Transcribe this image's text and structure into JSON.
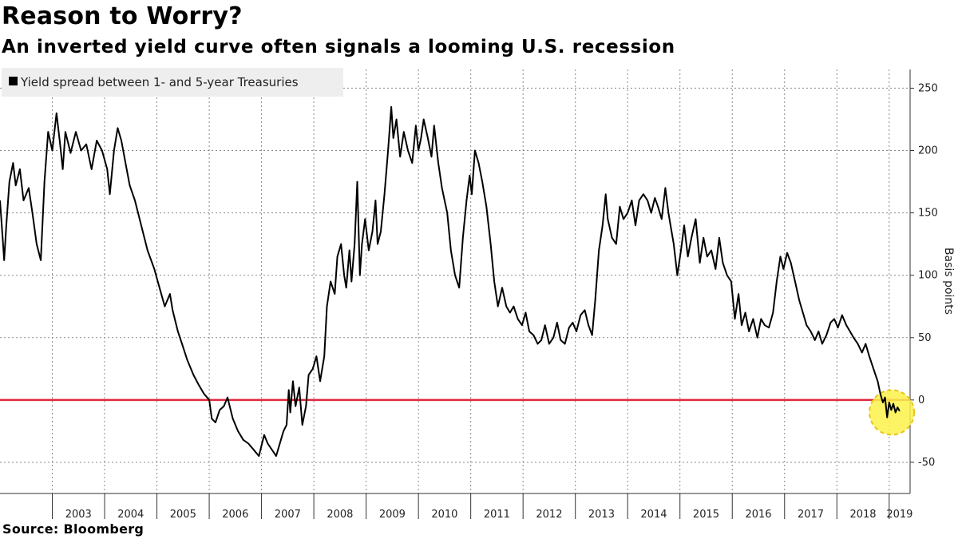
{
  "header": {
    "title": "Reason to Worry?",
    "subtitle": "An inverted yield curve often signals a looming U.S. recession"
  },
  "footer": {
    "source": "Source:  Bloomberg"
  },
  "colors": {
    "series": "#000000",
    "zero_line": "#e0283c",
    "highlight_fill": "#fbf14a",
    "highlight_stroke": "#e8c41a",
    "legend_bg": "#eeeeee",
    "grid": "#888888"
  },
  "chart_data": {
    "type": "line",
    "title": "Reason to Worry?",
    "subtitle": "An inverted yield curve often signals a looming U.S. recession",
    "legend": "Yield spread between 1- and 5-year Treasuries",
    "legend_position": "top-left",
    "ylabel": "Basis points",
    "xlabel": "",
    "ylim": [
      -75,
      265
    ],
    "xlim": [
      2002.0,
      2019.4
    ],
    "y_ticks": [
      250,
      200,
      150,
      100,
      50,
      0,
      -50
    ],
    "x_tick_labels": [
      "2003",
      "2004",
      "2005",
      "2006",
      "2007",
      "2008",
      "2009",
      "2010",
      "2011",
      "2012",
      "2013",
      "2014",
      "2015",
      "2016",
      "2017",
      "2018",
      "2019"
    ],
    "grid": true,
    "reference_line": {
      "y": 0,
      "color": "red"
    },
    "annotation": {
      "type": "highlight-circle",
      "x": 2019.05,
      "y": -10
    },
    "series": [
      {
        "name": "Yield spread between 1- and 5-year Treasuries",
        "points": [
          [
            2002.0,
            160
          ],
          [
            2002.05,
            130
          ],
          [
            2002.08,
            112
          ],
          [
            2002.12,
            140
          ],
          [
            2002.18,
            175
          ],
          [
            2002.25,
            190
          ],
          [
            2002.3,
            172
          ],
          [
            2002.38,
            185
          ],
          [
            2002.45,
            160
          ],
          [
            2002.55,
            170
          ],
          [
            2002.62,
            150
          ],
          [
            2002.7,
            125
          ],
          [
            2002.78,
            112
          ],
          [
            2002.85,
            175
          ],
          [
            2002.92,
            215
          ],
          [
            2003.0,
            200
          ],
          [
            2003.08,
            230
          ],
          [
            2003.15,
            205
          ],
          [
            2003.2,
            185
          ],
          [
            2003.25,
            215
          ],
          [
            2003.35,
            198
          ],
          [
            2003.45,
            215
          ],
          [
            2003.55,
            200
          ],
          [
            2003.65,
            205
          ],
          [
            2003.75,
            185
          ],
          [
            2003.85,
            208
          ],
          [
            2003.95,
            200
          ],
          [
            2004.05,
            185
          ],
          [
            2004.1,
            165
          ],
          [
            2004.18,
            200
          ],
          [
            2004.25,
            218
          ],
          [
            2004.32,
            208
          ],
          [
            2004.4,
            190
          ],
          [
            2004.48,
            172
          ],
          [
            2004.58,
            160
          ],
          [
            2004.7,
            140
          ],
          [
            2004.82,
            120
          ],
          [
            2004.95,
            105
          ],
          [
            2005.05,
            90
          ],
          [
            2005.15,
            75
          ],
          [
            2005.25,
            85
          ],
          [
            2005.3,
            72
          ],
          [
            2005.4,
            55
          ],
          [
            2005.48,
            45
          ],
          [
            2005.58,
            32
          ],
          [
            2005.7,
            20
          ],
          [
            2005.8,
            12
          ],
          [
            2005.9,
            5
          ],
          [
            2006.0,
            0
          ],
          [
            2006.05,
            -15
          ],
          [
            2006.12,
            -18
          ],
          [
            2006.2,
            -8
          ],
          [
            2006.28,
            -5
          ],
          [
            2006.35,
            2
          ],
          [
            2006.45,
            -15
          ],
          [
            2006.55,
            -25
          ],
          [
            2006.65,
            -32
          ],
          [
            2006.75,
            -35
          ],
          [
            2006.85,
            -40
          ],
          [
            2006.95,
            -45
          ],
          [
            2007.05,
            -28
          ],
          [
            2007.12,
            -35
          ],
          [
            2007.2,
            -40
          ],
          [
            2007.28,
            -45
          ],
          [
            2007.35,
            -35
          ],
          [
            2007.42,
            -25
          ],
          [
            2007.48,
            -20
          ],
          [
            2007.52,
            8
          ],
          [
            2007.55,
            -10
          ],
          [
            2007.6,
            15
          ],
          [
            2007.65,
            -5
          ],
          [
            2007.72,
            10
          ],
          [
            2007.78,
            -20
          ],
          [
            2007.85,
            -5
          ],
          [
            2007.9,
            20
          ],
          [
            2007.98,
            25
          ],
          [
            2008.05,
            35
          ],
          [
            2008.12,
            15
          ],
          [
            2008.2,
            35
          ],
          [
            2008.25,
            75
          ],
          [
            2008.32,
            95
          ],
          [
            2008.4,
            85
          ],
          [
            2008.45,
            115
          ],
          [
            2008.52,
            125
          ],
          [
            2008.58,
            100
          ],
          [
            2008.62,
            90
          ],
          [
            2008.68,
            120
          ],
          [
            2008.72,
            95
          ],
          [
            2008.78,
            125
          ],
          [
            2008.83,
            175
          ],
          [
            2008.88,
            100
          ],
          [
            2008.92,
            125
          ],
          [
            2008.98,
            145
          ],
          [
            2009.05,
            120
          ],
          [
            2009.12,
            135
          ],
          [
            2009.18,
            160
          ],
          [
            2009.22,
            125
          ],
          [
            2009.28,
            135
          ],
          [
            2009.35,
            165
          ],
          [
            2009.42,
            200
          ],
          [
            2009.48,
            235
          ],
          [
            2009.52,
            210
          ],
          [
            2009.58,
            225
          ],
          [
            2009.65,
            195
          ],
          [
            2009.72,
            215
          ],
          [
            2009.8,
            200
          ],
          [
            2009.88,
            190
          ],
          [
            2009.95,
            220
          ],
          [
            2010.0,
            200
          ],
          [
            2010.05,
            210
          ],
          [
            2010.1,
            225
          ],
          [
            2010.18,
            210
          ],
          [
            2010.25,
            195
          ],
          [
            2010.3,
            220
          ],
          [
            2010.38,
            190
          ],
          [
            2010.45,
            170
          ],
          [
            2010.55,
            150
          ],
          [
            2010.62,
            120
          ],
          [
            2010.7,
            100
          ],
          [
            2010.78,
            90
          ],
          [
            2010.85,
            130
          ],
          [
            2010.92,
            160
          ],
          [
            2010.98,
            180
          ],
          [
            2011.02,
            165
          ],
          [
            2011.08,
            200
          ],
          [
            2011.15,
            190
          ],
          [
            2011.22,
            175
          ],
          [
            2011.3,
            155
          ],
          [
            2011.38,
            125
          ],
          [
            2011.45,
            95
          ],
          [
            2011.52,
            75
          ],
          [
            2011.6,
            90
          ],
          [
            2011.68,
            75
          ],
          [
            2011.75,
            70
          ],
          [
            2011.82,
            75
          ],
          [
            2011.9,
            65
          ],
          [
            2011.98,
            60
          ],
          [
            2012.05,
            70
          ],
          [
            2012.12,
            55
          ],
          [
            2012.2,
            52
          ],
          [
            2012.28,
            45
          ],
          [
            2012.35,
            48
          ],
          [
            2012.42,
            60
          ],
          [
            2012.5,
            45
          ],
          [
            2012.58,
            50
          ],
          [
            2012.65,
            62
          ],
          [
            2012.72,
            48
          ],
          [
            2012.8,
            45
          ],
          [
            2012.88,
            58
          ],
          [
            2012.95,
            62
          ],
          [
            2013.02,
            55
          ],
          [
            2013.1,
            68
          ],
          [
            2013.18,
            72
          ],
          [
            2013.25,
            60
          ],
          [
            2013.32,
            52
          ],
          [
            2013.38,
            80
          ],
          [
            2013.45,
            120
          ],
          [
            2013.52,
            140
          ],
          [
            2013.58,
            165
          ],
          [
            2013.62,
            145
          ],
          [
            2013.7,
            130
          ],
          [
            2013.78,
            125
          ],
          [
            2013.85,
            155
          ],
          [
            2013.92,
            145
          ],
          [
            2014.0,
            150
          ],
          [
            2014.08,
            160
          ],
          [
            2014.15,
            140
          ],
          [
            2014.22,
            160
          ],
          [
            2014.3,
            165
          ],
          [
            2014.38,
            160
          ],
          [
            2014.45,
            150
          ],
          [
            2014.52,
            162
          ],
          [
            2014.58,
            155
          ],
          [
            2014.65,
            145
          ],
          [
            2014.72,
            170
          ],
          [
            2014.78,
            150
          ],
          [
            2014.82,
            140
          ],
          [
            2014.88,
            125
          ],
          [
            2014.95,
            100
          ],
          [
            2015.02,
            120
          ],
          [
            2015.08,
            140
          ],
          [
            2015.15,
            115
          ],
          [
            2015.22,
            130
          ],
          [
            2015.3,
            145
          ],
          [
            2015.38,
            110
          ],
          [
            2015.45,
            130
          ],
          [
            2015.52,
            115
          ],
          [
            2015.6,
            120
          ],
          [
            2015.68,
            105
          ],
          [
            2015.75,
            130
          ],
          [
            2015.82,
            110
          ],
          [
            2015.9,
            100
          ],
          [
            2015.98,
            95
          ],
          [
            2016.05,
            65
          ],
          [
            2016.12,
            85
          ],
          [
            2016.18,
            60
          ],
          [
            2016.25,
            70
          ],
          [
            2016.32,
            55
          ],
          [
            2016.4,
            65
          ],
          [
            2016.48,
            50
          ],
          [
            2016.55,
            65
          ],
          [
            2016.62,
            60
          ],
          [
            2016.7,
            58
          ],
          [
            2016.78,
            70
          ],
          [
            2016.85,
            95
          ],
          [
            2016.92,
            115
          ],
          [
            2016.98,
            105
          ],
          [
            2017.05,
            118
          ],
          [
            2017.12,
            110
          ],
          [
            2017.2,
            95
          ],
          [
            2017.28,
            80
          ],
          [
            2017.35,
            70
          ],
          [
            2017.42,
            60
          ],
          [
            2017.5,
            55
          ],
          [
            2017.58,
            48
          ],
          [
            2017.65,
            55
          ],
          [
            2017.72,
            45
          ],
          [
            2017.8,
            52
          ],
          [
            2017.88,
            62
          ],
          [
            2017.95,
            65
          ],
          [
            2018.02,
            58
          ],
          [
            2018.1,
            68
          ],
          [
            2018.18,
            60
          ],
          [
            2018.25,
            55
          ],
          [
            2018.32,
            50
          ],
          [
            2018.4,
            45
          ],
          [
            2018.48,
            38
          ],
          [
            2018.55,
            45
          ],
          [
            2018.62,
            35
          ],
          [
            2018.7,
            25
          ],
          [
            2018.78,
            15
          ],
          [
            2018.83,
            5
          ],
          [
            2018.88,
            -2
          ],
          [
            2018.92,
            2
          ],
          [
            2018.96,
            -14
          ],
          [
            2019.0,
            -2
          ],
          [
            2019.04,
            -8
          ],
          [
            2019.08,
            -3
          ],
          [
            2019.12,
            -10
          ],
          [
            2019.16,
            -6
          ],
          [
            2019.2,
            -9
          ]
        ]
      }
    ]
  }
}
